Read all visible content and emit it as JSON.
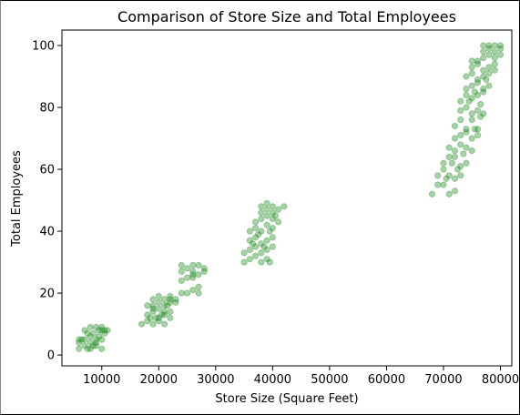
{
  "chart_data": {
    "type": "scatter",
    "title": "Comparison of Store Size and Total Employees",
    "xlabel": "Store Size (Square Feet)",
    "ylabel": "Total Employees",
    "xlim": [
      3000,
      82000
    ],
    "ylim": [
      -3.5,
      105
    ],
    "xticks": [
      10000,
      20000,
      30000,
      40000,
      50000,
      60000,
      70000,
      80000
    ],
    "yticks": [
      0,
      20,
      40,
      60,
      80,
      100
    ],
    "grid": false,
    "marker_color": "#228b22",
    "marker_alpha": 0.4,
    "series": [
      {
        "points": [
          [
            6000,
            2
          ],
          [
            7000,
            3
          ],
          [
            8000,
            2
          ],
          [
            9000,
            4
          ],
          [
            10000,
            2
          ],
          [
            6000,
            4
          ],
          [
            7000,
            5
          ],
          [
            8000,
            6
          ],
          [
            9000,
            5
          ],
          [
            6500,
            5
          ],
          [
            7500,
            7
          ],
          [
            8500,
            7
          ],
          [
            9500,
            8
          ],
          [
            10500,
            8
          ],
          [
            11000,
            8
          ],
          [
            8000,
            9
          ],
          [
            9000,
            9
          ],
          [
            10000,
            9
          ],
          [
            7000,
            8
          ],
          [
            8000,
            4
          ],
          [
            9000,
            3
          ],
          [
            10000,
            5
          ],
          [
            6000,
            5
          ],
          [
            10500,
            7
          ],
          [
            9500,
            6
          ],
          [
            8500,
            3
          ],
          [
            7500,
            2
          ],
          [
            10000,
            8
          ],
          [
            17000,
            10
          ],
          [
            18000,
            11
          ],
          [
            19000,
            10
          ],
          [
            20000,
            11
          ],
          [
            21000,
            10
          ],
          [
            18000,
            13
          ],
          [
            19000,
            14
          ],
          [
            20000,
            12
          ],
          [
            21000,
            13
          ],
          [
            22000,
            14
          ],
          [
            19000,
            16
          ],
          [
            20000,
            17
          ],
          [
            21000,
            16
          ],
          [
            22000,
            17
          ],
          [
            23000,
            18
          ],
          [
            20000,
            19
          ],
          [
            21000,
            18
          ],
          [
            22000,
            19
          ],
          [
            19000,
            15
          ],
          [
            20000,
            15
          ],
          [
            21000,
            14
          ],
          [
            22000,
            12
          ],
          [
            18500,
            12
          ],
          [
            19500,
            12
          ],
          [
            20500,
            13
          ],
          [
            21500,
            16
          ],
          [
            18000,
            16
          ],
          [
            19000,
            18
          ],
          [
            22000,
            18
          ],
          [
            23000,
            17
          ],
          [
            24000,
            20
          ],
          [
            25000,
            20
          ],
          [
            26000,
            21
          ],
          [
            27000,
            20
          ],
          [
            24000,
            24
          ],
          [
            25000,
            25
          ],
          [
            26000,
            26
          ],
          [
            27000,
            26
          ],
          [
            28000,
            27
          ],
          [
            24000,
            27
          ],
          [
            25000,
            28
          ],
          [
            26000,
            27
          ],
          [
            27000,
            29
          ],
          [
            28000,
            28
          ],
          [
            24000,
            29
          ],
          [
            26000,
            25
          ],
          [
            27000,
            22
          ],
          [
            26000,
            29
          ],
          [
            35000,
            30
          ],
          [
            36000,
            31
          ],
          [
            37000,
            32
          ],
          [
            38000,
            30
          ],
          [
            39000,
            31
          ],
          [
            35000,
            33
          ],
          [
            36000,
            34
          ],
          [
            37000,
            35
          ],
          [
            38000,
            33
          ],
          [
            39000,
            34
          ],
          [
            36000,
            37
          ],
          [
            37000,
            38
          ],
          [
            38000,
            36
          ],
          [
            39000,
            37
          ],
          [
            40000,
            38
          ],
          [
            36000,
            40
          ],
          [
            37000,
            41
          ],
          [
            38000,
            40
          ],
          [
            39000,
            42
          ],
          [
            40000,
            41
          ],
          [
            37000,
            43
          ],
          [
            38000,
            44
          ],
          [
            39000,
            45
          ],
          [
            40000,
            44
          ],
          [
            41000,
            43
          ],
          [
            38000,
            46
          ],
          [
            39000,
            47
          ],
          [
            40000,
            46
          ],
          [
            41000,
            47
          ],
          [
            42000,
            48
          ],
          [
            38000,
            48
          ],
          [
            39000,
            49
          ],
          [
            40000,
            48
          ],
          [
            37500,
            39
          ],
          [
            39500,
            40
          ],
          [
            40500,
            45
          ],
          [
            36500,
            36
          ],
          [
            38500,
            35
          ],
          [
            39500,
            30
          ],
          [
            40000,
            35
          ],
          [
            68000,
            52
          ],
          [
            69000,
            55
          ],
          [
            70000,
            55
          ],
          [
            71000,
            52
          ],
          [
            72000,
            53
          ],
          [
            69000,
            58
          ],
          [
            70000,
            60
          ],
          [
            71000,
            58
          ],
          [
            72000,
            57
          ],
          [
            73000,
            58
          ],
          [
            70000,
            62
          ],
          [
            71000,
            64
          ],
          [
            72000,
            64
          ],
          [
            73000,
            61
          ],
          [
            74000,
            62
          ],
          [
            71000,
            67
          ],
          [
            72000,
            66
          ],
          [
            73000,
            68
          ],
          [
            74000,
            67
          ],
          [
            75000,
            66
          ],
          [
            72000,
            70
          ],
          [
            73000,
            71
          ],
          [
            74000,
            72
          ],
          [
            75000,
            70
          ],
          [
            76000,
            71
          ],
          [
            72000,
            74
          ],
          [
            73000,
            76
          ],
          [
            74000,
            73
          ],
          [
            75000,
            76
          ],
          [
            76000,
            73
          ],
          [
            73000,
            79
          ],
          [
            74000,
            80
          ],
          [
            75000,
            78
          ],
          [
            76000,
            79
          ],
          [
            77000,
            78
          ],
          [
            73000,
            82
          ],
          [
            74000,
            84
          ],
          [
            75000,
            83
          ],
          [
            76000,
            84
          ],
          [
            77000,
            85
          ],
          [
            74000,
            86
          ],
          [
            75000,
            87
          ],
          [
            76000,
            88
          ],
          [
            77000,
            86
          ],
          [
            78000,
            87
          ],
          [
            74000,
            90
          ],
          [
            75000,
            91
          ],
          [
            76000,
            89
          ],
          [
            77000,
            90
          ],
          [
            78000,
            91
          ],
          [
            75000,
            93
          ],
          [
            76000,
            94
          ],
          [
            77000,
            92
          ],
          [
            78000,
            93
          ],
          [
            79000,
            92
          ],
          [
            75000,
            95
          ],
          [
            76000,
            95
          ],
          [
            77000,
            96
          ],
          [
            78000,
            97
          ],
          [
            79000,
            96
          ],
          [
            77000,
            98
          ],
          [
            78000,
            99
          ],
          [
            79000,
            98
          ],
          [
            80000,
            99
          ],
          [
            77000,
            100
          ],
          [
            78000,
            100
          ],
          [
            79000,
            100
          ],
          [
            80000,
            100
          ],
          [
            80000,
            97
          ],
          [
            79000,
            94
          ],
          [
            74500,
            82
          ],
          [
            75500,
            85
          ],
          [
            76500,
            81
          ],
          [
            77500,
            89
          ],
          [
            76500,
            77
          ],
          [
            75500,
            73
          ],
          [
            73500,
            65
          ],
          [
            72500,
            60
          ],
          [
            71500,
            62
          ],
          [
            70500,
            57
          ]
        ]
      }
    ]
  }
}
